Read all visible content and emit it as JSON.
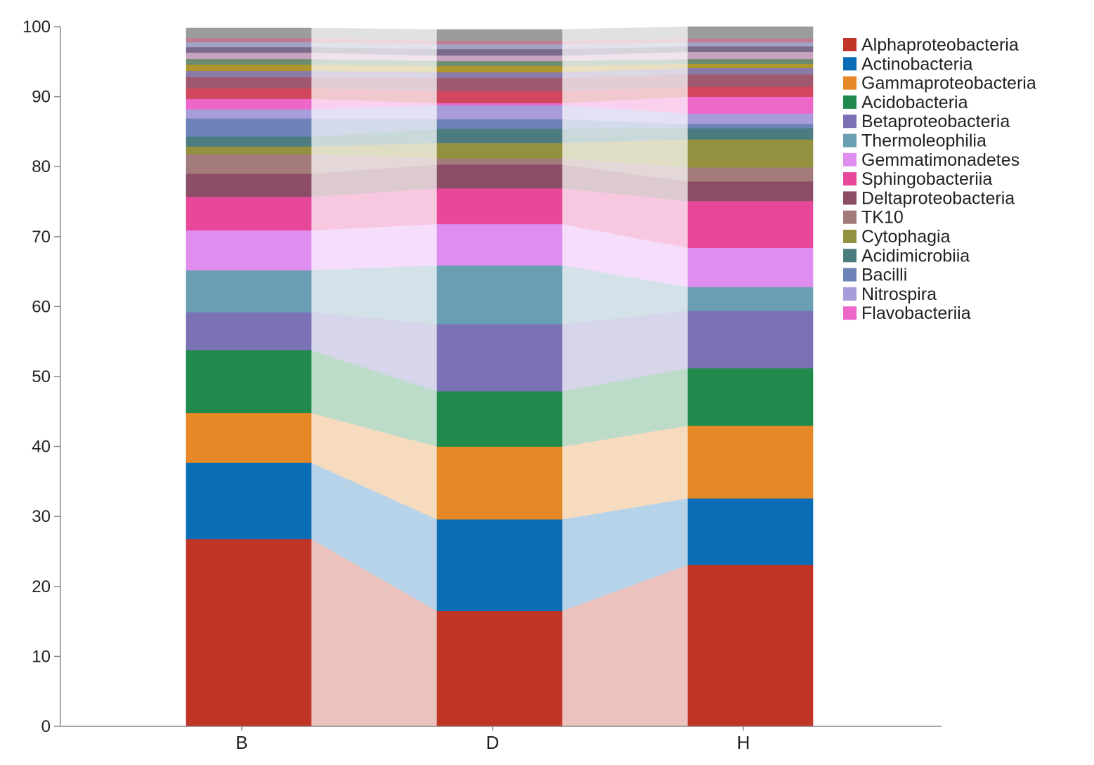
{
  "chart_data": {
    "type": "bar",
    "stacked": true,
    "categories": [
      "B",
      "D",
      "H"
    ],
    "ylim": [
      0,
      100
    ],
    "yticks": [
      0,
      10,
      20,
      30,
      40,
      50,
      60,
      70,
      80,
      90,
      100
    ],
    "grid": false,
    "legend_position": "top-right",
    "connectors_between_bars": true,
    "series": [
      {
        "name": "Alphaproteobacteria",
        "color": "#c03526",
        "values": [
          26.8,
          16.5,
          23.1
        ]
      },
      {
        "name": "Actinobacteria",
        "color": "#0b6db5",
        "values": [
          10.9,
          13.1,
          9.5
        ]
      },
      {
        "name": "Gammaproteobacteria",
        "color": "#e58825",
        "values": [
          7.1,
          10.4,
          10.4
        ]
      },
      {
        "name": "Acidobacteria",
        "color": "#1f8a4c",
        "values": [
          9.0,
          7.9,
          8.2
        ]
      },
      {
        "name": "Betaproteobacteria",
        "color": "#7b72b5",
        "values": [
          5.4,
          9.6,
          8.2
        ]
      },
      {
        "name": "Thermoleophilia",
        "color": "#6a9fb3",
        "values": [
          6.0,
          8.4,
          3.4
        ]
      },
      {
        "name": "Gemmatimonadetes",
        "color": "#df8ef0",
        "values": [
          5.7,
          5.9,
          5.6
        ]
      },
      {
        "name": "Sphingobacteriia",
        "color": "#e8489a",
        "values": [
          4.8,
          5.1,
          6.7
        ]
      },
      {
        "name": "Deltaproteobacteria",
        "color": "#8c4e66",
        "values": [
          3.3,
          3.4,
          2.8
        ]
      },
      {
        "name": "TK10",
        "color": "#a37b7b",
        "values": [
          2.8,
          0.9,
          2.0
        ]
      },
      {
        "name": "Cytophagia",
        "color": "#93913f",
        "values": [
          1.1,
          2.2,
          4.0
        ]
      },
      {
        "name": "Acidimicrobiia",
        "color": "#4c7c7f",
        "values": [
          1.4,
          2.0,
          1.6
        ]
      },
      {
        "name": "Bacilli",
        "color": "#6d82b7",
        "values": [
          2.6,
          1.4,
          0.6
        ]
      },
      {
        "name": "Nitrospira",
        "color": "#a99cdb",
        "values": [
          1.3,
          2.0,
          1.5
        ]
      },
      {
        "name": "Flavobacteriia",
        "color": "#ec67c8",
        "values": [
          1.5,
          0.3,
          2.4
        ]
      },
      {
        "name": "",
        "color": "#d2475e",
        "values": [
          1.5,
          1.7,
          1.4
        ]
      },
      {
        "name": "",
        "color": "#a0586e",
        "values": [
          1.6,
          1.9,
          1.8
        ]
      },
      {
        "name": "",
        "color": "#8a7aa8",
        "values": [
          0.9,
          0.8,
          0.9
        ]
      },
      {
        "name": "",
        "color": "#b0962f",
        "values": [
          0.9,
          0.9,
          0.6
        ]
      },
      {
        "name": "",
        "color": "#6e8d6f",
        "values": [
          0.8,
          0.7,
          0.7
        ]
      },
      {
        "name": "",
        "color": "#c8a3c0",
        "values": [
          0.9,
          0.8,
          1.0
        ]
      },
      {
        "name": "",
        "color": "#7a6b8b",
        "values": [
          0.8,
          0.9,
          0.8
        ]
      },
      {
        "name": "",
        "color": "#a3a3c6",
        "values": [
          0.7,
          0.7,
          0.6
        ]
      },
      {
        "name": "",
        "color": "#c07b92",
        "values": [
          0.6,
          0.5,
          0.5
        ]
      },
      {
        "name": "",
        "color": "#9c9c9c",
        "values": [
          1.4,
          1.6,
          1.7
        ]
      }
    ]
  }
}
